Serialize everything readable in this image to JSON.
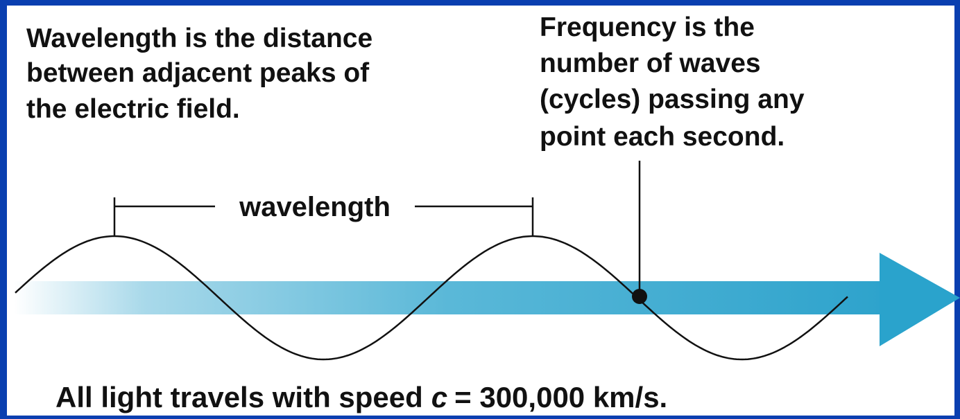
{
  "wavelength_note": {
    "lines": [
      "Wavelength is the distance",
      "between adjacent peaks of",
      "the electric field."
    ]
  },
  "frequency_note": {
    "lines": [
      "Frequency is the",
      "number of waves",
      "(cycles) passing any",
      "point each second."
    ]
  },
  "wavelength_label": "wavelength",
  "speed_note": {
    "parts": [
      "All light travels with speed",
      "c",
      "= 300,000 km/s."
    ]
  }
}
